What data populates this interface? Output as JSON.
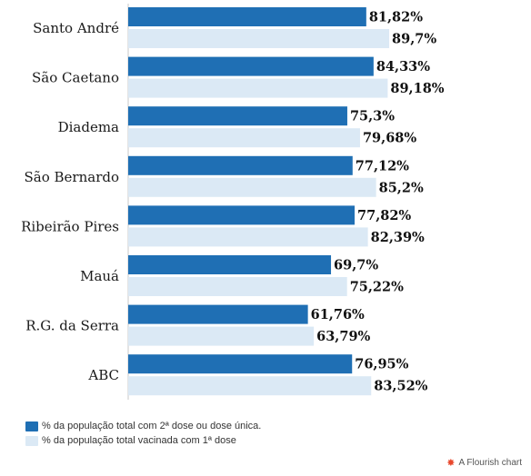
{
  "chart_data": {
    "type": "bar",
    "orientation": "horizontal",
    "categories": [
      "Santo André",
      "São Caetano",
      "Diadema",
      "São Bernardo",
      "Ribeirão Pires",
      "Mauá",
      "R.G. da Serra",
      "ABC"
    ],
    "series": [
      {
        "name": "% da população total com 2ª dose ou dose única.",
        "color": "#1f6fb4",
        "values": [
          81.82,
          84.33,
          75.3,
          77.12,
          77.82,
          69.7,
          61.76,
          76.95
        ],
        "labels": [
          "81,82%",
          "84,33%",
          "75,3%",
          "77,12%",
          "77,82%",
          "69,7%",
          "61,76%",
          "76,95%"
        ]
      },
      {
        "name": "% da população total vacinada com 1ª dose",
        "color": "#dbe9f5",
        "values": [
          89.7,
          89.18,
          79.68,
          85.2,
          82.39,
          75.22,
          63.79,
          83.52
        ],
        "labels": [
          "89,7%",
          "89,18%",
          "79,68%",
          "85,2%",
          "82,39%",
          "75,22%",
          "63,79%",
          "83,52%"
        ]
      }
    ],
    "xlim": [
      0,
      100
    ],
    "legend_position": "bottom-left"
  },
  "legend": {
    "items": [
      {
        "label": "% da população total com 2ª dose ou dose única.",
        "color": "#1f6fb4"
      },
      {
        "label": "% da população total vacinada com 1ª dose",
        "color": "#dbe9f5"
      }
    ]
  },
  "credit": {
    "text": "A Flourish chart",
    "icon": "flourish-logo-icon"
  }
}
